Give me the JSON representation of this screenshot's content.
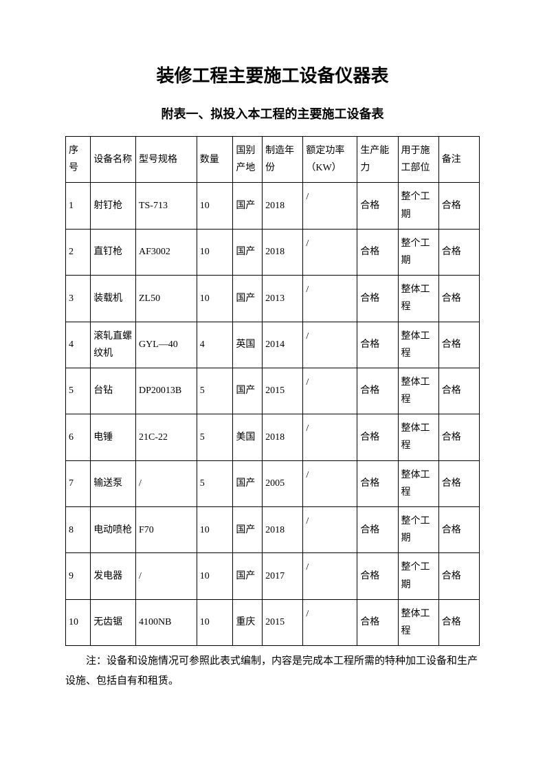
{
  "title": "装修工程主要施工设备仪器表",
  "subtitle": "附表一、拟投入本工程的主要施工设备表",
  "headers": {
    "c0": "序号",
    "c1": "设备名称",
    "c2": "型号规格",
    "c3": "数量",
    "c4": "国别产地",
    "c5": "制造年份",
    "c6": "额定功率（KW）",
    "c7": "生产能力",
    "c8": "用于施工部位",
    "c9": "备注"
  },
  "rows": [
    {
      "c0": "1",
      "c1": "射钉枪",
      "c2": "TS-713",
      "c3": "10",
      "c4": "国产",
      "c5": "2018",
      "c6": "/",
      "c7": "合格",
      "c8": "整个工期",
      "c9": "合格"
    },
    {
      "c0": "2",
      "c1": "直钉枪",
      "c2": "AF3002",
      "c3": "10",
      "c4": "国产",
      "c5": "2018",
      "c6": "/",
      "c7": "合格",
      "c8": "整个工期",
      "c9": "合格"
    },
    {
      "c0": "3",
      "c1": "装载机",
      "c2": "ZL50",
      "c3": "10",
      "c4": "国产",
      "c5": "2013",
      "c6": "/",
      "c7": "合格",
      "c8": "整体工程",
      "c9": "合格"
    },
    {
      "c0": "4",
      "c1": "滚轧直螺纹机",
      "c2": "GYL—40",
      "c3": "4",
      "c4": "英国",
      "c5": "2014",
      "c6": "/",
      "c7": "合格",
      "c8": "整体工程",
      "c9": "合格"
    },
    {
      "c0": "5",
      "c1": "台钻",
      "c2": "DP20013B",
      "c3": "5",
      "c4": "国产",
      "c5": "2015",
      "c6": "/",
      "c7": "合格",
      "c8": "整体工程",
      "c9": "合格"
    },
    {
      "c0": "6",
      "c1": "电锤",
      "c2": "21C-22",
      "c3": "5",
      "c4": "美国",
      "c5": "2018",
      "c6": "/",
      "c7": "合格",
      "c8": "整体工程",
      "c9": "合格"
    },
    {
      "c0": "7",
      "c1": "输送泵",
      "c2": "/",
      "c3": "5",
      "c4": "国产",
      "c5": "2005",
      "c6": "/",
      "c7": "合格",
      "c8": "整体工程",
      "c9": "合格"
    },
    {
      "c0": "8",
      "c1": "电动喷枪",
      "c2": "F70",
      "c3": "10",
      "c4": "国产",
      "c5": "2018",
      "c6": "/",
      "c7": "合格",
      "c8": "整个工期",
      "c9": "合格"
    },
    {
      "c0": "9",
      "c1": "发电器",
      "c2": "/",
      "c3": "10",
      "c4": "国产",
      "c5": "2017",
      "c6": "/",
      "c7": "合格",
      "c8": "整个工期",
      "c9": "合格"
    },
    {
      "c0": "10",
      "c1": "无齿锯",
      "c2": "4100NB",
      "c3": "10",
      "c4": "重庆",
      "c5": "2015",
      "c6": "/",
      "c7": "合格",
      "c8": "整体工程",
      "c9": "合格"
    }
  ],
  "note": "注：设备和设施情况可参照此表式编制，内容是完成本工程所需的特种加工设备和生产设施、包括自有和租赁。"
}
